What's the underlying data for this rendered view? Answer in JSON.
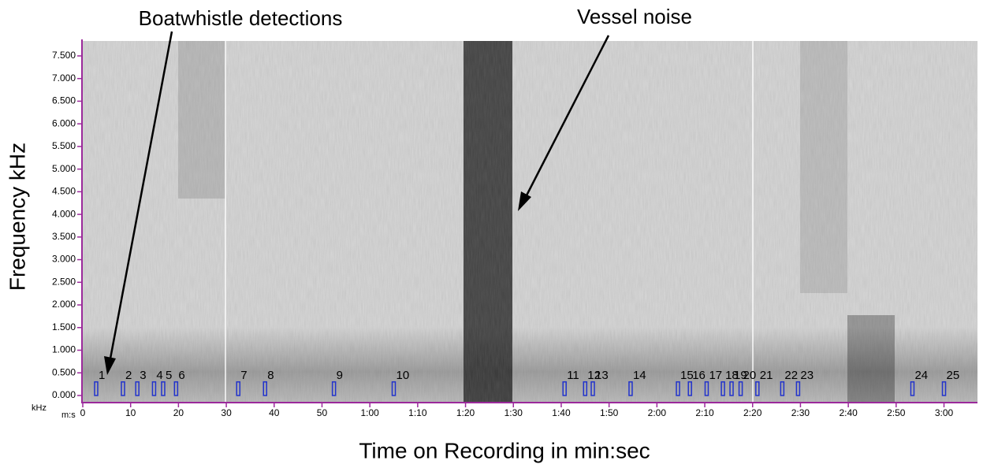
{
  "chart_data": {
    "type": "spectrogram",
    "annotations": [
      "Boatwhistle detections",
      "Vessel noise"
    ],
    "y_label": "Frequency kHz",
    "x_label": "Time on Recording in min:sec",
    "y_unit": "kHz",
    "x_unit": "m:s",
    "xlim": [
      0,
      187
    ],
    "ylim": [
      -0.14,
      7.83
    ],
    "xticks": [
      0,
      10,
      20,
      30,
      40,
      50,
      {
        "value": 60,
        "label": "1:00"
      },
      {
        "value": 70,
        "label": "1:10"
      },
      {
        "value": 80,
        "label": "1:20"
      },
      {
        "value": 90,
        "label": "1:30"
      },
      {
        "value": 100,
        "label": "1:40"
      },
      {
        "value": 110,
        "label": "1:50"
      },
      {
        "value": 120,
        "label": "2:00"
      },
      {
        "value": 130,
        "label": "2:10"
      },
      {
        "value": 140,
        "label": "2:20"
      },
      {
        "value": 150,
        "label": "2:30"
      },
      {
        "value": 160,
        "label": "2:40"
      },
      {
        "value": 170,
        "label": "2:50"
      },
      {
        "value": 180,
        "label": "3:00"
      }
    ],
    "yticks": [
      {
        "value": 0,
        "label": "0.000"
      },
      {
        "value": 0.5,
        "label": "0.500"
      },
      {
        "value": 1,
        "label": "1.000"
      },
      {
        "value": 1.5,
        "label": "1.500"
      },
      {
        "value": 2,
        "label": "2.000"
      },
      {
        "value": 2.5,
        "label": "2.500"
      },
      {
        "value": 3,
        "label": "3.000"
      },
      {
        "value": 3.5,
        "label": "3.500"
      },
      {
        "value": 4,
        "label": "4.000"
      },
      {
        "value": 4.5,
        "label": "4.500"
      },
      {
        "value": 5,
        "label": "5.000"
      },
      {
        "value": 5.5,
        "label": "5.500"
      },
      {
        "value": 6,
        "label": "6.000"
      },
      {
        "value": 6.5,
        "label": "6.500"
      },
      {
        "value": 7,
        "label": "7.000"
      },
      {
        "value": 7.5,
        "label": "7.500"
      }
    ],
    "detections": {
      "color": "#2233cc",
      "labels": [
        "1",
        "2",
        "3",
        "4",
        "5",
        "6",
        "7",
        "8",
        "9",
        "10",
        "11",
        "12",
        "13",
        "14",
        "15",
        "16",
        "17",
        "18",
        "19",
        "20",
        "21",
        "22",
        "23",
        "24",
        "25"
      ],
      "times": [
        2.8,
        8.4,
        11.4,
        14.9,
        16.8,
        19.5,
        32.5,
        38.1,
        52.5,
        65,
        100.7,
        105,
        106.6,
        114.5,
        124.4,
        126.9,
        130.4,
        133.8,
        135.6,
        137.5,
        141,
        146.2,
        149.5,
        173.4,
        180
      ]
    }
  }
}
